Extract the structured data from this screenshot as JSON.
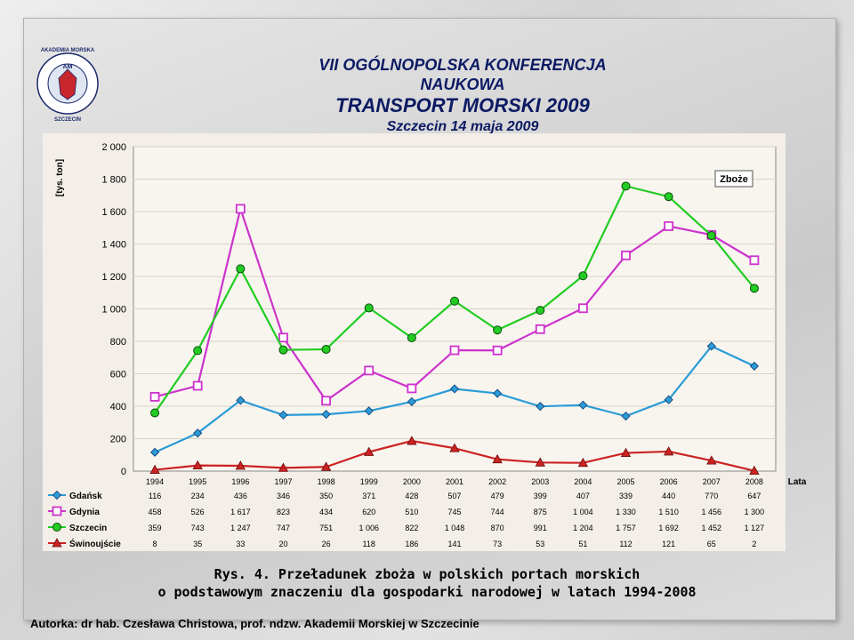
{
  "header": {
    "line1": "VII OGÓLNOPOLSKA KONFERENCJA NAUKOWA",
    "line2": "TRANSPORT MORSKI 2009",
    "line3": "Szczecin 14 maja 2009"
  },
  "logo": {
    "text_top": "AKADEMIA MORSKA",
    "text_bottom": "SZCZECIN",
    "monogram": "AM"
  },
  "chart_data": {
    "type": "line",
    "title": "Zboże",
    "ylabel": "[tys. ton]",
    "xlabel": "Lata",
    "ylim": [
      0,
      2000
    ],
    "yticks": [
      "0",
      "200",
      "400",
      "600",
      "800",
      "1 000",
      "1 200",
      "1 400",
      "1 600",
      "1 800",
      "2 000"
    ],
    "x": [
      "1994",
      "1995",
      "1996",
      "1997",
      "1998",
      "1999",
      "2000",
      "2001",
      "2002",
      "2003",
      "2004",
      "2005",
      "2006",
      "2007",
      "2008"
    ],
    "series": [
      {
        "name": "Gdańsk",
        "color": "#2a9bd6",
        "marker": "diamond",
        "values": [
          116,
          234,
          436,
          346,
          350,
          371,
          428,
          507,
          479,
          399,
          407,
          339,
          440,
          770,
          647
        ],
        "labels": [
          "116",
          "234",
          "436",
          "346",
          "350",
          "371",
          "428",
          "507",
          "479",
          "399",
          "407",
          "339",
          "440",
          "770",
          "647"
        ]
      },
      {
        "name": "Gdynia",
        "color": "#cc33cc",
        "marker": "square",
        "values": [
          458,
          526,
          1617,
          823,
          434,
          620,
          510,
          745,
          744,
          875,
          1004,
          1330,
          1510,
          1456,
          1300
        ],
        "labels": [
          "458",
          "526",
          "1 617",
          "823",
          "434",
          "620",
          "510",
          "745",
          "744",
          "875",
          "1 004",
          "1 330",
          "1 510",
          "1 456",
          "1 300"
        ]
      },
      {
        "name": "Szczecin",
        "color": "#22cc22",
        "marker": "circle",
        "values": [
          359,
          743,
          1247,
          747,
          751,
          1006,
          822,
          1048,
          870,
          991,
          1204,
          1757,
          1692,
          1452,
          1127
        ],
        "labels": [
          "359",
          "743",
          "1 247",
          "747",
          "751",
          "1 006",
          "822",
          "1 048",
          "870",
          "991",
          "1 204",
          "1 757",
          "1 692",
          "1 452",
          "1 127"
        ]
      },
      {
        "name": "Świnoujście",
        "color": "#cc2222",
        "marker": "triangle",
        "values": [
          8,
          35,
          33,
          20,
          26,
          118,
          186,
          141,
          73,
          53,
          51,
          112,
          121,
          65,
          2
        ],
        "labels": [
          "8",
          "35",
          "33",
          "20",
          "26",
          "118",
          "186",
          "141",
          "73",
          "53",
          "51",
          "112",
          "121",
          "65",
          "2"
        ]
      }
    ]
  },
  "caption": {
    "line1": "Rys. 4. Przeładunek zboża w polskich portach morskich",
    "line2": "o podstawowym znaczeniu dla gospodarki narodowej w latach 1994-2008"
  },
  "author": "Autorka: dr hab. Czesława Christowa, prof. ndzw. Akademii Morskiej w Szczecinie"
}
